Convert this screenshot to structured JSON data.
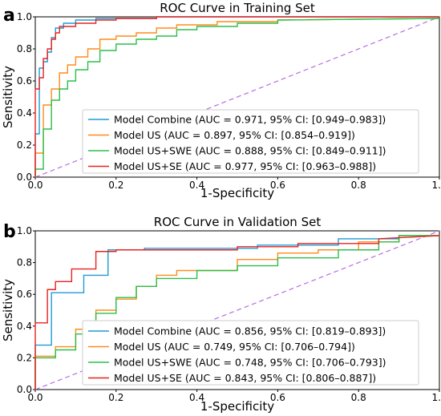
{
  "chart_data": [
    {
      "panel": "a",
      "type": "line",
      "title": "ROC Curve in Training Set",
      "xlabel": "1-Specificity",
      "ylabel": "Sensitivity",
      "xlim": [
        0.0,
        1.0
      ],
      "ylim": [
        0.0,
        1.0
      ],
      "x_ticks": [
        "0.0",
        "0.2",
        "0.4",
        "0.6",
        "0.8",
        "1.0"
      ],
      "y_ticks": [
        "0.0",
        "0.2",
        "0.4",
        "0.6",
        "0.8",
        "1.0"
      ],
      "legend_position": "lower-right",
      "reference_line": {
        "x": [
          0,
          1
        ],
        "y": [
          0,
          1
        ],
        "color": "#b56ee0",
        "style": "dashed"
      },
      "series": [
        {
          "name": "Model Combine (AUC = 0.971, 95% CI: [0.949–0.983])",
          "color": "#1f9bd6",
          "x": [
            0,
            0,
            0.01,
            0.01,
            0.02,
            0.02,
            0.03,
            0.03,
            0.04,
            0.04,
            0.05,
            0.05,
            0.07,
            0.07,
            0.1,
            0.1,
            0.15,
            0.15,
            0.3,
            0.3,
            1.0
          ],
          "y": [
            0,
            0.27,
            0.27,
            0.68,
            0.68,
            0.72,
            0.72,
            0.78,
            0.78,
            0.87,
            0.87,
            0.93,
            0.93,
            0.96,
            0.96,
            0.98,
            0.98,
            0.99,
            0.99,
            1.0,
            1.0
          ]
        },
        {
          "name": "Model US (AUC = 0.897, 95% CI: [0.854–0.919])",
          "color": "#ff8c1a",
          "x": [
            0,
            0,
            0.02,
            0.02,
            0.04,
            0.04,
            0.06,
            0.06,
            0.08,
            0.08,
            0.1,
            0.1,
            0.13,
            0.13,
            0.16,
            0.16,
            0.2,
            0.2,
            0.25,
            0.25,
            0.3,
            0.3,
            0.35,
            0.35,
            0.45,
            0.45,
            0.6,
            0.6,
            1.0
          ],
          "y": [
            0,
            0.15,
            0.15,
            0.45,
            0.45,
            0.55,
            0.55,
            0.65,
            0.65,
            0.7,
            0.7,
            0.75,
            0.75,
            0.8,
            0.8,
            0.86,
            0.86,
            0.88,
            0.88,
            0.9,
            0.9,
            0.93,
            0.93,
            0.95,
            0.95,
            0.97,
            0.97,
            0.98,
            0.99
          ]
        },
        {
          "name": "Model US+SWE (AUC = 0.888, 95% CI: [0.849–0.911])",
          "color": "#2bbf4a",
          "x": [
            0,
            0,
            0.02,
            0.02,
            0.04,
            0.04,
            0.06,
            0.06,
            0.08,
            0.08,
            0.1,
            0.1,
            0.13,
            0.13,
            0.16,
            0.16,
            0.2,
            0.2,
            0.25,
            0.25,
            0.3,
            0.3,
            0.35,
            0.35,
            0.4,
            0.4,
            0.5,
            0.5,
            0.6,
            0.6,
            1.0
          ],
          "y": [
            0,
            0.05,
            0.05,
            0.3,
            0.3,
            0.48,
            0.48,
            0.55,
            0.55,
            0.6,
            0.6,
            0.67,
            0.67,
            0.72,
            0.72,
            0.79,
            0.79,
            0.83,
            0.83,
            0.86,
            0.86,
            0.88,
            0.88,
            0.92,
            0.92,
            0.94,
            0.94,
            0.96,
            0.96,
            0.98,
            0.99
          ]
        },
        {
          "name": "Model US+SE (AUC = 0.977, 95% CI: [0.963–0.988])",
          "color": "#e8231f",
          "x": [
            0,
            0,
            0.01,
            0.01,
            0.02,
            0.02,
            0.03,
            0.03,
            0.04,
            0.04,
            0.05,
            0.05,
            0.06,
            0.06,
            0.1,
            0.1,
            0.15,
            0.15,
            0.2,
            0.2,
            0.3,
            0.3,
            1.0
          ],
          "y": [
            0,
            0.55,
            0.55,
            0.62,
            0.62,
            0.74,
            0.74,
            0.8,
            0.8,
            0.86,
            0.86,
            0.9,
            0.9,
            0.94,
            0.94,
            0.96,
            0.96,
            0.98,
            0.98,
            0.99,
            0.99,
            1.0,
            1.0
          ]
        }
      ]
    },
    {
      "panel": "b",
      "type": "line",
      "title": "ROC Curve in Validation Set",
      "xlabel": "1-Specificity",
      "ylabel": "Sensitivity",
      "xlim": [
        0.0,
        1.0
      ],
      "ylim": [
        0.0,
        1.0
      ],
      "x_ticks": [
        "0.0",
        "0.2",
        "0.4",
        "0.6",
        "0.8",
        "1.0"
      ],
      "y_ticks": [
        "0.0",
        "0.2",
        "0.4",
        "0.6",
        "0.8",
        "1.0"
      ],
      "legend_position": "lower-right",
      "reference_line": {
        "x": [
          0,
          1
        ],
        "y": [
          0,
          1
        ],
        "color": "#b56ee0",
        "style": "dashed"
      },
      "series": [
        {
          "name": "Model Combine (AUC = 0.856, 95% CI: [0.819–0.893])",
          "color": "#1f9bd6",
          "x": [
            0,
            0,
            0.04,
            0.04,
            0.12,
            0.12,
            0.18,
            0.18,
            0.27,
            0.27,
            0.55,
            0.55,
            0.75,
            0.75,
            0.9,
            0.9,
            1.0
          ],
          "y": [
            0,
            0.28,
            0.28,
            0.61,
            0.61,
            0.72,
            0.72,
            0.88,
            0.88,
            0.89,
            0.89,
            0.91,
            0.91,
            0.95,
            0.95,
            0.97,
            0.97
          ]
        },
        {
          "name": "Model US (AUC = 0.749, 95% CI: [0.706–0.794])",
          "color": "#ff8c1a",
          "x": [
            0,
            0,
            0.05,
            0.05,
            0.1,
            0.1,
            0.15,
            0.15,
            0.2,
            0.2,
            0.25,
            0.25,
            0.3,
            0.3,
            0.35,
            0.35,
            0.5,
            0.5,
            0.6,
            0.6,
            0.7,
            0.7,
            0.8,
            0.8,
            0.9,
            0.9,
            1.0
          ],
          "y": [
            0,
            0.21,
            0.21,
            0.27,
            0.27,
            0.38,
            0.38,
            0.5,
            0.5,
            0.57,
            0.57,
            0.65,
            0.65,
            0.72,
            0.72,
            0.75,
            0.75,
            0.82,
            0.82,
            0.86,
            0.86,
            0.88,
            0.88,
            0.93,
            0.93,
            0.97,
            0.97
          ]
        },
        {
          "name": "Model US+SWE (AUC = 0.748, 95% CI: [0.706–0.793])",
          "color": "#2bbf4a",
          "x": [
            0,
            0,
            0.05,
            0.05,
            0.1,
            0.1,
            0.15,
            0.15,
            0.2,
            0.2,
            0.25,
            0.25,
            0.3,
            0.3,
            0.4,
            0.4,
            0.5,
            0.5,
            0.6,
            0.6,
            0.75,
            0.75,
            0.85,
            0.85,
            0.9,
            0.9,
            1.0
          ],
          "y": [
            0,
            0.2,
            0.2,
            0.25,
            0.25,
            0.35,
            0.35,
            0.48,
            0.48,
            0.58,
            0.58,
            0.65,
            0.65,
            0.7,
            0.7,
            0.75,
            0.75,
            0.78,
            0.78,
            0.83,
            0.83,
            0.88,
            0.88,
            0.93,
            0.93,
            0.97,
            0.97
          ]
        },
        {
          "name": "Model US+SE (AUC = 0.843, 95% CI: [0.806–0.887])",
          "color": "#e8231f",
          "x": [
            0,
            0,
            0.03,
            0.03,
            0.05,
            0.05,
            0.09,
            0.09,
            0.15,
            0.15,
            0.2,
            0.2,
            0.25,
            0.25,
            0.35,
            0.35,
            0.5,
            0.5,
            0.65,
            0.65,
            0.85,
            0.85,
            1.0
          ],
          "y": [
            0,
            0.42,
            0.42,
            0.63,
            0.63,
            0.68,
            0.68,
            0.76,
            0.76,
            0.87,
            0.87,
            0.88,
            0.88,
            0.88,
            0.88,
            0.88,
            0.88,
            0.9,
            0.9,
            0.92,
            0.92,
            0.95,
            0.97
          ]
        }
      ]
    }
  ]
}
